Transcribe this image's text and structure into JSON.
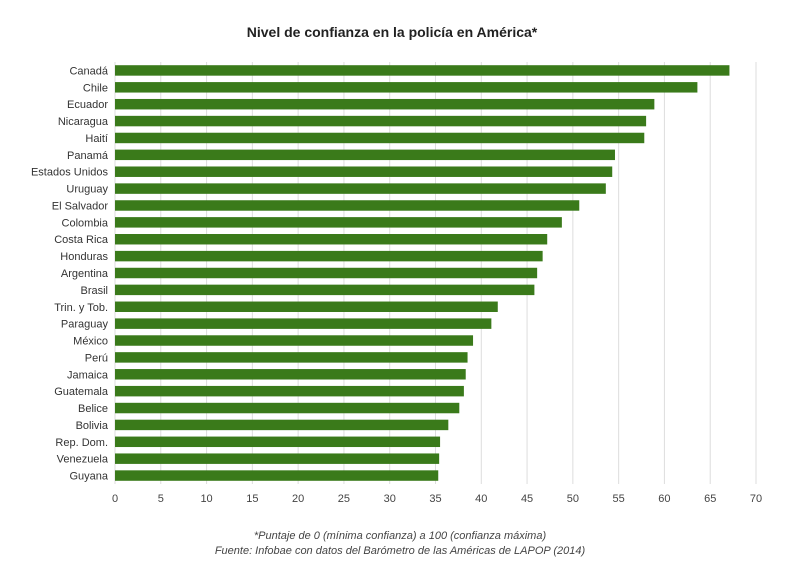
{
  "chart_data": {
    "type": "bar",
    "orientation": "horizontal",
    "title": "Nivel de confianza en la policía en América*",
    "categories": [
      "Canadá",
      "Chile",
      "Ecuador",
      "Nicaragua",
      "Haití",
      "Panamá",
      "Estados Unidos",
      "Uruguay",
      "El Salvador",
      "Colombia",
      "Costa Rica",
      "Honduras",
      "Argentina",
      "Brasil",
      "Trin. y Tob.",
      "Paraguay",
      "México",
      "Perú",
      "Jamaica",
      "Guatemala",
      "Belice",
      "Bolivia",
      "Rep. Dom.",
      "Venezuela",
      "Guyana"
    ],
    "values": [
      67.1,
      63.6,
      58.9,
      58.0,
      57.8,
      54.6,
      54.3,
      53.6,
      50.7,
      48.8,
      47.2,
      46.7,
      46.1,
      45.8,
      41.8,
      41.1,
      39.1,
      38.5,
      38.3,
      38.1,
      37.6,
      36.4,
      35.5,
      35.4,
      35.3
    ],
    "xlim": [
      0,
      70
    ],
    "xticks": [
      "0",
      "5",
      "10",
      "15",
      "20",
      "25",
      "30",
      "35",
      "40",
      "45",
      "50",
      "55",
      "60",
      "65",
      "70"
    ],
    "grid": true,
    "bar_color": "#3a7a1a"
  },
  "footnote": "*Puntaje de 0 (mínima confianza) a 100 (confianza máxima)",
  "source": "Fuente: Infobae con datos del Barómetro de las Américas de LAPOP (2014)"
}
